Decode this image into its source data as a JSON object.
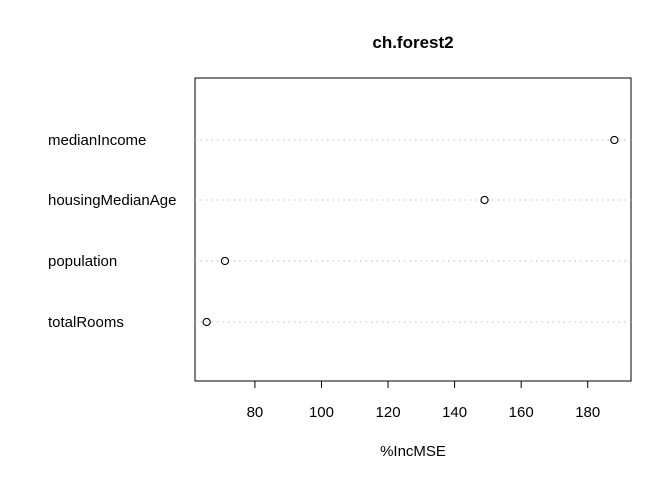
{
  "chart_data": {
    "type": "scatter",
    "subtype": "dotchart",
    "title": "ch.forest2",
    "xlabel": "%IncMSE",
    "ylabel": "",
    "categories": [
      "medianIncome",
      "housingMedianAge",
      "population",
      "totalRooms"
    ],
    "values": [
      188,
      149,
      71,
      65.5
    ],
    "xlim": [
      62,
      193
    ],
    "xticks": [
      80,
      100,
      120,
      140,
      160,
      180
    ],
    "grid": "dotted horizontal lines per category",
    "legend": "none",
    "colors": {
      "points": "#000000",
      "gridlines": "#bebebe",
      "frame": "#000000",
      "background": "#ffffff"
    }
  }
}
